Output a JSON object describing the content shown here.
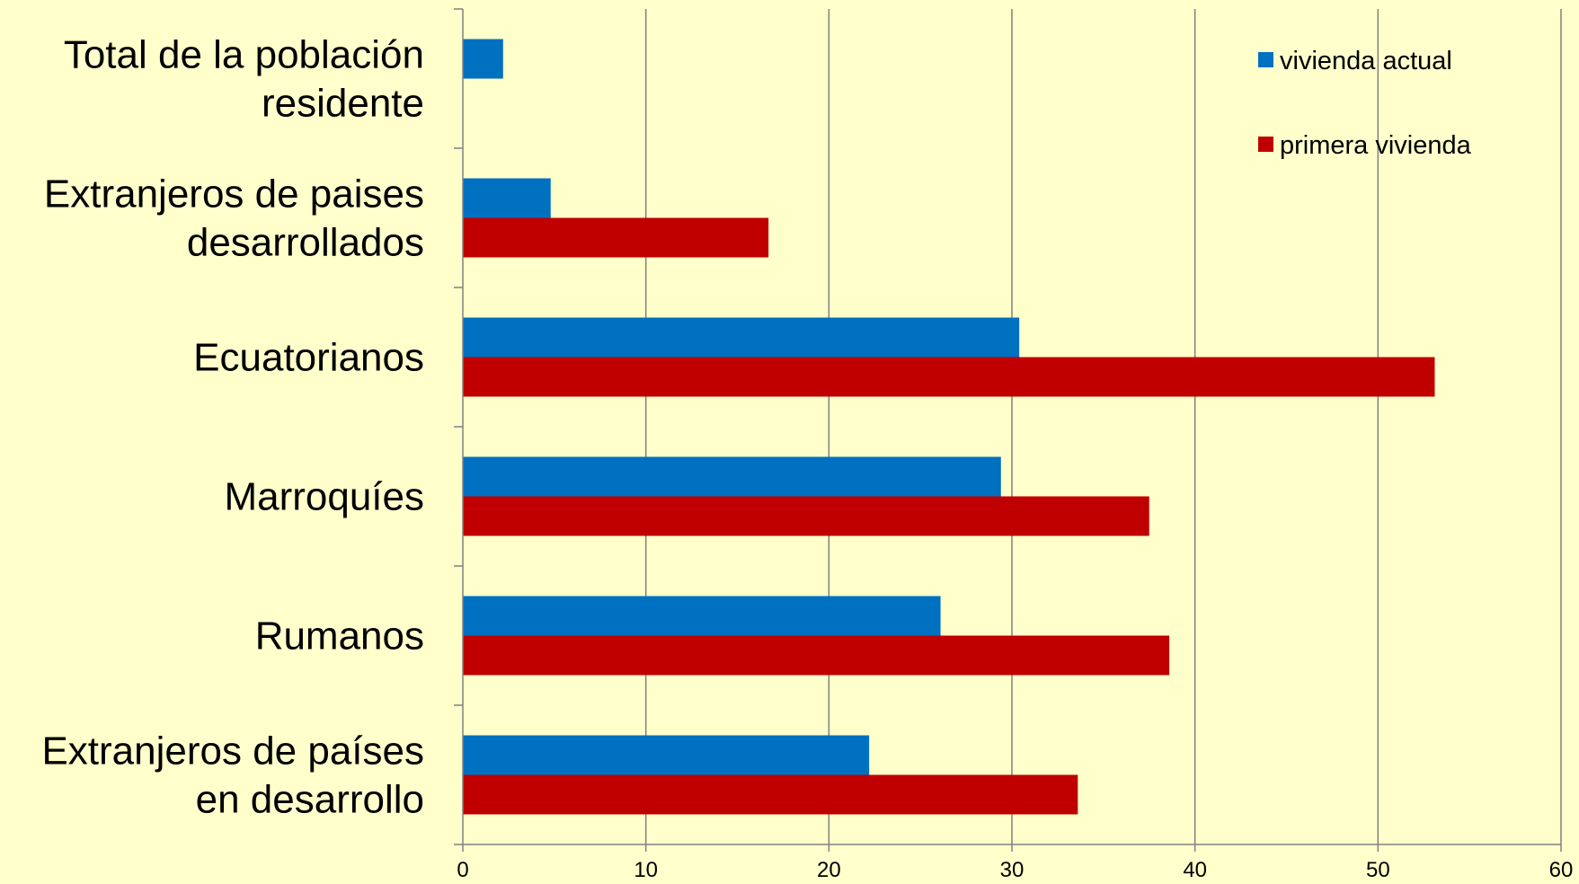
{
  "chart_data": {
    "type": "bar",
    "orientation": "horizontal",
    "categories": [
      [
        "Total de la población",
        "residente"
      ],
      [
        "Extranjeros de paises",
        "desarrollados"
      ],
      [
        "Ecuatorianos"
      ],
      [
        "Marroquíes"
      ],
      [
        "Rumanos"
      ],
      [
        "Extranjeros de países",
        "en desarrollo"
      ]
    ],
    "series": [
      {
        "name": "vivienda actual",
        "color": "#0070c0",
        "values": [
          2.2,
          4.8,
          30.4,
          29.4,
          26.1,
          22.2
        ]
      },
      {
        "name": "primera vivienda",
        "color": "#c00000",
        "values": [
          null,
          16.7,
          53.1,
          37.5,
          38.6,
          33.6
        ]
      }
    ],
    "xlim": [
      0,
      60
    ],
    "xticks": [
      0,
      10,
      20,
      30,
      40,
      50,
      60
    ],
    "grid": "vertical",
    "legend": "top-right",
    "title": "",
    "xlabel": "",
    "ylabel": ""
  }
}
